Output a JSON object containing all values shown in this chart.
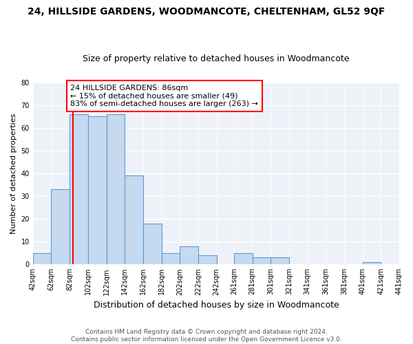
{
  "title": "24, HILLSIDE GARDENS, WOODMANCOTE, CHELTENHAM, GL52 9QF",
  "subtitle": "Size of property relative to detached houses in Woodmancote",
  "xlabel": "Distribution of detached houses by size in Woodmancote",
  "ylabel": "Number of detached properties",
  "bar_color": "#c5d9f0",
  "bar_edge_color": "#5b9bd5",
  "property_line_x": 86,
  "property_line_color": "red",
  "annotation_text": "24 HILLSIDE GARDENS: 86sqm\n← 15% of detached houses are smaller (49)\n83% of semi-detached houses are larger (263) →",
  "annotation_box_color": "white",
  "annotation_box_edge_color": "red",
  "bins": [
    42,
    62,
    82,
    102,
    122,
    142,
    162,
    182,
    202,
    222,
    242,
    261,
    281,
    301,
    321,
    341,
    361,
    381,
    401,
    421,
    441
  ],
  "counts": [
    5,
    33,
    66,
    65,
    66,
    39,
    18,
    5,
    8,
    4,
    0,
    5,
    3,
    3,
    0,
    0,
    0,
    0,
    1,
    0
  ],
  "ylim": [
    0,
    80
  ],
  "yticks": [
    0,
    10,
    20,
    30,
    40,
    50,
    60,
    70,
    80
  ],
  "xtick_labels": [
    "42sqm",
    "62sqm",
    "82sqm",
    "102sqm",
    "122sqm",
    "142sqm",
    "162sqm",
    "182sqm",
    "202sqm",
    "222sqm",
    "242sqm",
    "261sqm",
    "281sqm",
    "301sqm",
    "321sqm",
    "341sqm",
    "361sqm",
    "381sqm",
    "401sqm",
    "421sqm",
    "441sqm"
  ],
  "footer_text": "Contains HM Land Registry data © Crown copyright and database right 2024.\nContains public sector information licensed under the Open Government Licence v3.0.",
  "fig_background_color": "white",
  "plot_background_color": "#eef2f8",
  "grid_color": "white",
  "title_fontsize": 10,
  "subtitle_fontsize": 9,
  "xlabel_fontsize": 9,
  "ylabel_fontsize": 8,
  "tick_fontsize": 7,
  "annotation_fontsize": 8,
  "footer_fontsize": 6.5
}
